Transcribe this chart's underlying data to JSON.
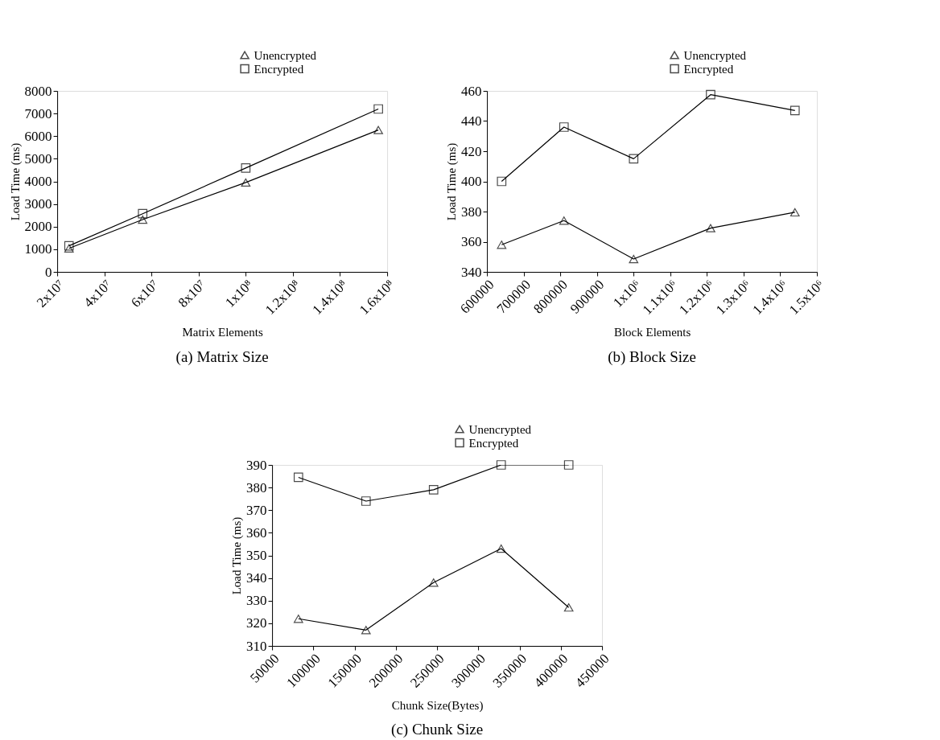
{
  "chart_data": [
    {
      "type": "line",
      "title": "(a) Matrix Size",
      "xlabel": "Matrix Elements",
      "ylabel": "Load Time (ms)",
      "legend": "top right",
      "grid": false,
      "xlim": [
        20000000,
        160000000
      ],
      "xticks": [
        {
          "value": 20000000,
          "label": "2x10⁷"
        },
        {
          "value": 40000000,
          "label": "4x10⁷"
        },
        {
          "value": 60000000,
          "label": "6x10⁷"
        },
        {
          "value": 80000000,
          "label": "8x10⁷"
        },
        {
          "value": 100000000,
          "label": "1x10⁸"
        },
        {
          "value": 120000000,
          "label": "1.2x10⁸"
        },
        {
          "value": 140000000,
          "label": "1.4x10⁸"
        },
        {
          "value": 160000000,
          "label": "1.6x10⁸"
        }
      ],
      "ylim": [
        0,
        8000
      ],
      "yticks": [
        0,
        1000,
        2000,
        3000,
        4000,
        5000,
        6000,
        7000,
        8000
      ],
      "series": [
        {
          "name": "Unencrypted",
          "color": "#000000",
          "marker": "triangle",
          "x": [
            25000000,
            56250000,
            100000000,
            156250000
          ],
          "values": [
            1040,
            2310,
            3950,
            6270
          ]
        },
        {
          "name": "Encrypted",
          "color": "#000000",
          "marker": "square",
          "x": [
            25000000,
            56250000,
            100000000,
            156250000
          ],
          "values": [
            1150,
            2570,
            4590,
            7200
          ]
        }
      ]
    },
    {
      "type": "line",
      "title": "(b) Block Size",
      "xlabel": "Block Elements",
      "ylabel": "Load Time (ms)",
      "legend": "top right",
      "grid": false,
      "xlim": [
        600000,
        1500000
      ],
      "xticks": [
        600000,
        700000,
        800000,
        900000,
        {
          "value": 1000000,
          "label": "1x10⁶"
        },
        {
          "value": 1100000,
          "label": "1.1x10⁶"
        },
        {
          "value": 1200000,
          "label": "1.2x10⁶"
        },
        {
          "value": 1300000,
          "label": "1.3x10⁶"
        },
        {
          "value": 1400000,
          "label": "1.4x10⁶"
        },
        {
          "value": 1500000,
          "label": "1.5x10⁶"
        }
      ],
      "ylim": [
        340,
        460
      ],
      "yticks": [
        340,
        360,
        380,
        400,
        420,
        440,
        460
      ],
      "series": [
        {
          "name": "Unencrypted",
          "color": "#000000",
          "marker": "triangle",
          "x": [
            640000,
            810000,
            1000000,
            1210000,
            1440000
          ],
          "values": [
            358,
            374,
            348.5,
            369,
            379.5
          ]
        },
        {
          "name": "Encrypted",
          "color": "#000000",
          "marker": "square",
          "x": [
            640000,
            810000,
            1000000,
            1210000,
            1440000
          ],
          "values": [
            400,
            436,
            415,
            457.5,
            447
          ]
        }
      ]
    },
    {
      "type": "line",
      "title": "(c) Chunk Size",
      "xlabel": "Chunk Size(Bytes)",
      "ylabel": "Load Time (ms)",
      "legend": "top right",
      "grid": false,
      "xlim": [
        50000,
        450000
      ],
      "xticks": [
        50000,
        100000,
        150000,
        200000,
        250000,
        300000,
        350000,
        400000,
        450000
      ],
      "ylim": [
        310,
        390
      ],
      "yticks": [
        310,
        320,
        330,
        340,
        350,
        360,
        370,
        380,
        390
      ],
      "series": [
        {
          "name": "Unencrypted",
          "color": "#000000",
          "marker": "triangle",
          "x": [
            81920,
            163840,
            245760,
            327680,
            409600
          ],
          "values": [
            322,
            317,
            338,
            353,
            327
          ]
        },
        {
          "name": "Encrypted",
          "color": "#000000",
          "marker": "square",
          "x": [
            81920,
            163840,
            245760,
            327680,
            409600
          ],
          "values": [
            384.5,
            374,
            379,
            390,
            390
          ]
        }
      ]
    }
  ]
}
